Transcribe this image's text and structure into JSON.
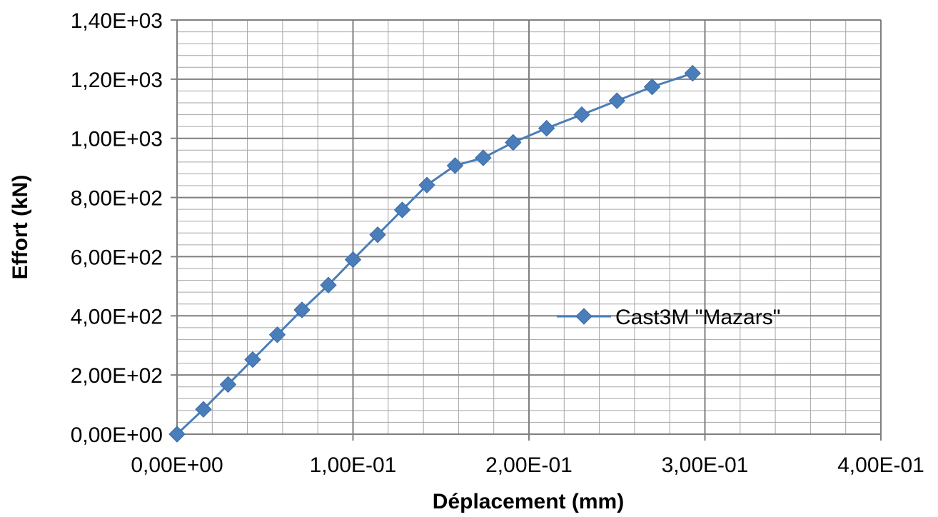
{
  "chart_data": {
    "type": "line",
    "xlabel": "Déplacement (mm)",
    "ylabel": "Effort (kN)",
    "xlim": [
      0,
      0.4
    ],
    "ylim": [
      0,
      1400
    ],
    "x_ticks": [
      0,
      0.1,
      0.2,
      0.3,
      0.4
    ],
    "x_tick_labels": [
      "0,00E+00",
      "1,00E-01",
      "2,00E-01",
      "3,00E-01",
      "4,00E-01"
    ],
    "y_ticks": [
      0,
      200,
      400,
      600,
      800,
      1000,
      1200,
      1400
    ],
    "y_tick_labels": [
      "0,00E+00",
      "2,00E+02",
      "4,00E+02",
      "6,00E+02",
      "8,00E+02",
      "1,00E+03",
      "1,20E+03",
      "1,40E+03"
    ],
    "x_minor_step": 0.02,
    "y_minor_step": 40,
    "grid": true,
    "legend_position": "right",
    "series": [
      {
        "name": "Cast3M \"Mazars\"",
        "color": "#4a7ebb",
        "marker": "diamond",
        "x": [
          0.0,
          0.015,
          0.029,
          0.043,
          0.057,
          0.071,
          0.086,
          0.1,
          0.114,
          0.128,
          0.142,
          0.158,
          0.174,
          0.191,
          0.21,
          0.23,
          0.25,
          0.27,
          0.293
        ],
        "y": [
          0,
          84,
          168,
          252,
          336,
          420,
          504,
          590,
          674,
          758,
          842,
          908,
          934,
          986,
          1034,
          1080,
          1127,
          1174,
          1220
        ]
      }
    ]
  }
}
